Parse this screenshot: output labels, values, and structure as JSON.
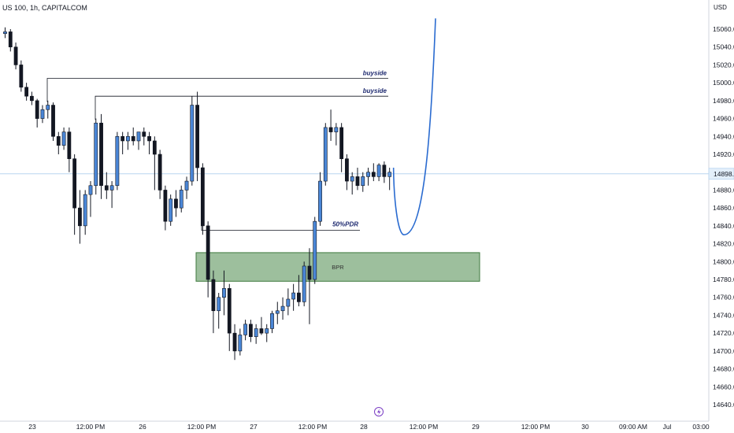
{
  "header": {
    "symbol": "US 100, 1h, CAPITALCOM",
    "currency": "USD"
  },
  "colors": {
    "bull": "#4a86d6",
    "bear": "#131722",
    "wick": "#131722",
    "zone_fill": "#9dbf9d",
    "zone_stroke": "#3e7a3e",
    "projection": "#2a6bd0",
    "grid": "#ffffff",
    "current_line": "#b8d6f0"
  },
  "chart_data": {
    "type": "candlestick",
    "y_range": [
      14640,
      15075
    ],
    "y_ticks": [
      "15060.0",
      "15040.0",
      "15020.0",
      "15000.0",
      "14980.0",
      "14960.0",
      "14940.0",
      "14920.0",
      "14880.0",
      "14860.0",
      "14840.0",
      "14820.0",
      "14800.0",
      "14780.0",
      "14760.0",
      "14740.0",
      "14720.0",
      "14700.0",
      "14680.0",
      "14660.0",
      "14640.0"
    ],
    "x_ticks": [
      "23",
      "12:00 PM",
      "26",
      "12:00 PM",
      "27",
      "12:00 PM",
      "28",
      "12:00 PM",
      "29",
      "12:00 PM",
      "30",
      "09:00 AM",
      "Jul",
      "03:00"
    ],
    "current_price": 14898.2,
    "candles": [
      [
        15055,
        15062,
        15050,
        15057
      ],
      [
        15057,
        15060,
        15035,
        15040
      ],
      [
        15040,
        15045,
        15015,
        15020
      ],
      [
        15020,
        15025,
        14990,
        14995
      ],
      [
        14995,
        15000,
        14980,
        14985
      ],
      [
        14985,
        14990,
        14975,
        14980
      ],
      [
        14980,
        14982,
        14950,
        14960
      ],
      [
        14960,
        14975,
        14955,
        14970
      ],
      [
        14970,
        14980,
        14960,
        14975
      ],
      [
        14975,
        14978,
        14935,
        14940
      ],
      [
        14940,
        14945,
        14920,
        14930
      ],
      [
        14930,
        14950,
        14925,
        14945
      ],
      [
        14945,
        14950,
        14900,
        14915
      ],
      [
        14915,
        14920,
        14830,
        14860
      ],
      [
        14860,
        14880,
        14820,
        14840
      ],
      [
        14840,
        14880,
        14830,
        14875
      ],
      [
        14875,
        14890,
        14850,
        14885
      ],
      [
        14885,
        14960,
        14875,
        14955
      ],
      [
        14955,
        14965,
        14870,
        14885
      ],
      [
        14885,
        14900,
        14870,
        14880
      ],
      [
        14880,
        14890,
        14860,
        14885
      ],
      [
        14885,
        14945,
        14880,
        14940
      ],
      [
        14940,
        14945,
        14920,
        14935
      ],
      [
        14935,
        14945,
        14925,
        14940
      ],
      [
        14940,
        14950,
        14930,
        14935
      ],
      [
        14935,
        14945,
        14925,
        14945
      ],
      [
        14945,
        14950,
        14930,
        14940
      ],
      [
        14940,
        14945,
        14920,
        14935
      ],
      [
        14935,
        14940,
        14880,
        14920
      ],
      [
        14920,
        14925,
        14870,
        14880
      ],
      [
        14880,
        14885,
        14835,
        14845
      ],
      [
        14845,
        14875,
        14840,
        14870
      ],
      [
        14870,
        14880,
        14850,
        14860
      ],
      [
        14860,
        14885,
        14855,
        14880
      ],
      [
        14880,
        14895,
        14870,
        14890
      ],
      [
        14890,
        14985,
        14885,
        14975
      ],
      [
        14975,
        14990,
        14890,
        14905
      ],
      [
        14905,
        14910,
        14830,
        14840
      ],
      [
        14840,
        14845,
        14760,
        14780
      ],
      [
        14780,
        14790,
        14720,
        14745
      ],
      [
        14745,
        14765,
        14725,
        14760
      ],
      [
        14760,
        14790,
        14740,
        14770
      ],
      [
        14770,
        14775,
        14700,
        14720
      ],
      [
        14720,
        14730,
        14690,
        14700
      ],
      [
        14700,
        14725,
        14695,
        14718
      ],
      [
        14718,
        14735,
        14712,
        14730
      ],
      [
        14730,
        14735,
        14710,
        14716
      ],
      [
        14716,
        14730,
        14708,
        14725
      ],
      [
        14725,
        14738,
        14718,
        14720
      ],
      [
        14720,
        14730,
        14710,
        14725
      ],
      [
        14725,
        14745,
        14720,
        14742
      ],
      [
        14742,
        14755,
        14730,
        14745
      ],
      [
        14745,
        14760,
        14735,
        14750
      ],
      [
        14750,
        14770,
        14740,
        14758
      ],
      [
        14758,
        14775,
        14745,
        14765
      ],
      [
        14765,
        14785,
        14750,
        14755
      ],
      [
        14755,
        14800,
        14750,
        14795
      ],
      [
        14795,
        14815,
        14730,
        14780
      ],
      [
        14780,
        14850,
        14775,
        14845
      ],
      [
        14845,
        14900,
        14840,
        14890
      ],
      [
        14890,
        14955,
        14885,
        14950
      ],
      [
        14950,
        14970,
        14935,
        14945
      ],
      [
        14945,
        14955,
        14930,
        14950
      ],
      [
        14950,
        14955,
        14900,
        14915
      ],
      [
        14915,
        14920,
        14880,
        14890
      ],
      [
        14890,
        14900,
        14875,
        14895
      ],
      [
        14895,
        14905,
        14880,
        14885
      ],
      [
        14885,
        14900,
        14878,
        14895
      ],
      [
        14895,
        14905,
        14885,
        14900
      ],
      [
        14900,
        14910,
        14890,
        14895
      ],
      [
        14895,
        14910,
        14890,
        14908
      ],
      [
        14908,
        14912,
        14888,
        14895
      ],
      [
        14895,
        14905,
        14880,
        14900
      ]
    ],
    "annotations": {
      "buyside_1": {
        "label": "buyside",
        "price": 15005
      },
      "buyside_2": {
        "label": "buyside",
        "price": 14985
      },
      "pdr": {
        "label": "50%PDR",
        "price": 14835
      },
      "bpr": {
        "label": "BPR",
        "price_top": 14810,
        "price_bottom": 14778
      }
    },
    "projection": "curve down to ~14830 then up to ~15072"
  }
}
